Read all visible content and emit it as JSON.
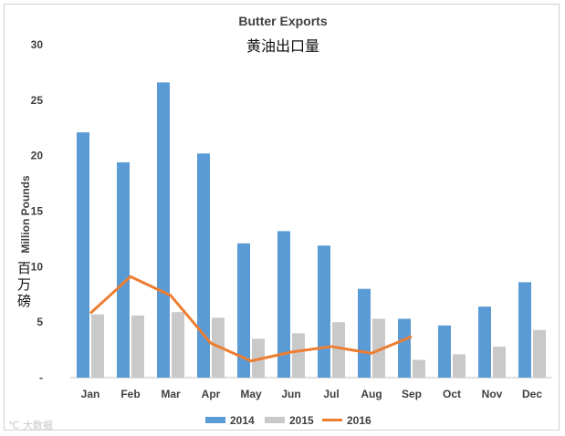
{
  "chart_data": {
    "type": "bar",
    "title": "Butter Exports",
    "subtitle": "黄油出口量",
    "ylabel": "Million Pounds",
    "ylabel_cn": "百万磅",
    "xlabel": "",
    "ylim": [
      0,
      30
    ],
    "yticks": [
      "-",
      "5",
      "10",
      "15",
      "20",
      "25",
      "30"
    ],
    "ytick_values": [
      0,
      5,
      10,
      15,
      20,
      25,
      30
    ],
    "categories": [
      "Jan",
      "Feb",
      "Mar",
      "Apr",
      "May",
      "Jun",
      "Jul",
      "Aug",
      "Sep",
      "Oct",
      "Nov",
      "Dec"
    ],
    "series": [
      {
        "name": "2014",
        "kind": "bar",
        "color": "#5b9bd5",
        "values": [
          22.1,
          19.4,
          26.6,
          20.2,
          12.1,
          13.2,
          11.9,
          8.0,
          5.3,
          4.7,
          6.4,
          8.6
        ]
      },
      {
        "name": "2015",
        "kind": "bar",
        "color": "#c9c9c9",
        "values": [
          5.7,
          5.6,
          5.9,
          5.4,
          3.5,
          4.0,
          5.0,
          5.3,
          1.6,
          2.1,
          2.8,
          4.3
        ]
      },
      {
        "name": "2016",
        "kind": "line",
        "color": "#ed7d31",
        "values": [
          5.8,
          9.1,
          7.4,
          3.1,
          1.5,
          2.3,
          2.8,
          2.2,
          3.7,
          null,
          null,
          null
        ]
      }
    ],
    "legend_position": "bottom"
  },
  "watermark": "大数据",
  "watermark_glyph": "℃"
}
